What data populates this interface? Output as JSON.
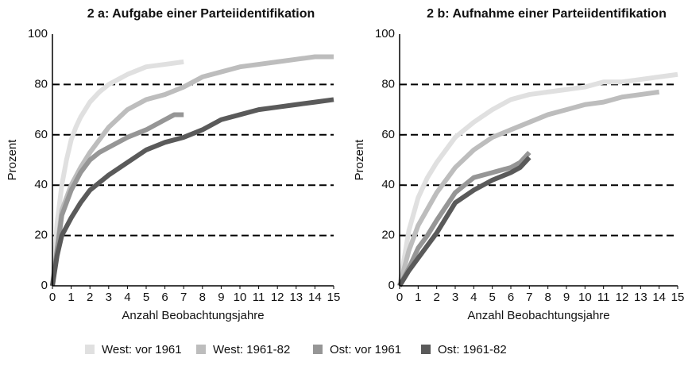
{
  "chart_data": [
    {
      "type": "line",
      "title": "2 a: Aufgabe einer Parteiidentifikation",
      "x_label": "Anzahl Beobachtungsjahre",
      "y_label": "Prozent",
      "xlim": [
        0,
        15
      ],
      "xticks": [
        0,
        1,
        2,
        3,
        4,
        5,
        6,
        7,
        8,
        9,
        10,
        11,
        12,
        13,
        14,
        15
      ],
      "ylim": [
        0,
        100
      ],
      "yticks": [
        0,
        20,
        40,
        60,
        80,
        100
      ],
      "grid": true,
      "series": [
        {
          "name": "West: vor 1961",
          "color": "#e0e0e0",
          "x": [
            0,
            0.25,
            0.5,
            0.75,
            1,
            1.25,
            1.5,
            2,
            2.5,
            3,
            3.5,
            4,
            5,
            6,
            7
          ],
          "values": [
            0,
            25,
            40,
            50,
            58,
            63,
            67,
            73,
            77,
            80,
            82,
            84,
            87,
            88,
            89
          ]
        },
        {
          "name": "West: 1961-82",
          "color": "#bdbdbd",
          "x": [
            0,
            0.5,
            1,
            1.5,
            2,
            3,
            4,
            5,
            6,
            7,
            8,
            9,
            10,
            11,
            12,
            13,
            14,
            15
          ],
          "values": [
            0,
            30,
            40,
            47,
            53,
            63,
            70,
            74,
            76,
            79,
            83,
            85,
            87,
            88,
            89,
            90,
            91,
            91
          ]
        },
        {
          "name": "Ost: vor 1961",
          "color": "#969696",
          "x": [
            0,
            0.5,
            1,
            1.5,
            2,
            2.5,
            3,
            4,
            5,
            6,
            6.5,
            7
          ],
          "values": [
            0,
            28,
            38,
            45,
            50,
            53,
            55,
            59,
            62,
            66,
            68,
            68
          ]
        },
        {
          "name": "Ost: 1961-82",
          "color": "#5a5a5a",
          "x": [
            0,
            0.25,
            0.5,
            1,
            1.5,
            2,
            3,
            4,
            5,
            6,
            7,
            8,
            9,
            10,
            11,
            12,
            13,
            14,
            15
          ],
          "values": [
            0,
            12,
            20,
            27,
            33,
            38,
            44,
            49,
            54,
            57,
            59,
            62,
            66,
            68,
            70,
            71,
            72,
            73,
            74
          ]
        }
      ]
    },
    {
      "type": "line",
      "title": "2 b: Aufnahme einer Parteiidentifikation",
      "x_label": "Anzahl Beobachtungsjahre",
      "y_label": "Prozent",
      "xlim": [
        0,
        15
      ],
      "xticks": [
        0,
        1,
        2,
        3,
        4,
        5,
        6,
        7,
        8,
        9,
        10,
        11,
        12,
        13,
        14,
        15
      ],
      "ylim": [
        0,
        100
      ],
      "yticks": [
        0,
        20,
        40,
        60,
        80,
        100
      ],
      "grid": true,
      "series": [
        {
          "name": "West: vor 1961",
          "color": "#e0e0e0",
          "x": [
            0,
            0.5,
            1,
            1.5,
            2,
            2.5,
            3,
            4,
            5,
            6,
            7,
            8,
            9,
            10,
            11,
            12,
            13,
            14,
            15
          ],
          "values": [
            0,
            22,
            35,
            43,
            49,
            54,
            59,
            65,
            70,
            74,
            76,
            77,
            78,
            79,
            81,
            81,
            82,
            83,
            84
          ]
        },
        {
          "name": "West: 1961-82",
          "color": "#bdbdbd",
          "x": [
            0,
            0.5,
            1,
            2,
            3,
            4,
            5,
            6,
            7,
            8,
            9,
            10,
            11,
            12,
            13,
            14
          ],
          "values": [
            0,
            14,
            24,
            37,
            47,
            54,
            59,
            62,
            65,
            68,
            70,
            72,
            73,
            75,
            76,
            77
          ]
        },
        {
          "name": "Ost: vor 1961",
          "color": "#969696",
          "x": [
            0,
            0.5,
            1,
            1.5,
            2,
            3,
            4,
            5,
            6,
            6.5,
            7
          ],
          "values": [
            0,
            7,
            15,
            20,
            26,
            37,
            43,
            45,
            47,
            49,
            53
          ]
        },
        {
          "name": "Ost: 1961-82",
          "color": "#5a5a5a",
          "x": [
            0,
            0.5,
            1,
            1.5,
            2,
            2.5,
            3,
            4,
            5,
            6,
            6.5,
            7
          ],
          "values": [
            0,
            6,
            11,
            16,
            21,
            27,
            33,
            38,
            42,
            45,
            47,
            51
          ]
        }
      ]
    }
  ]
}
